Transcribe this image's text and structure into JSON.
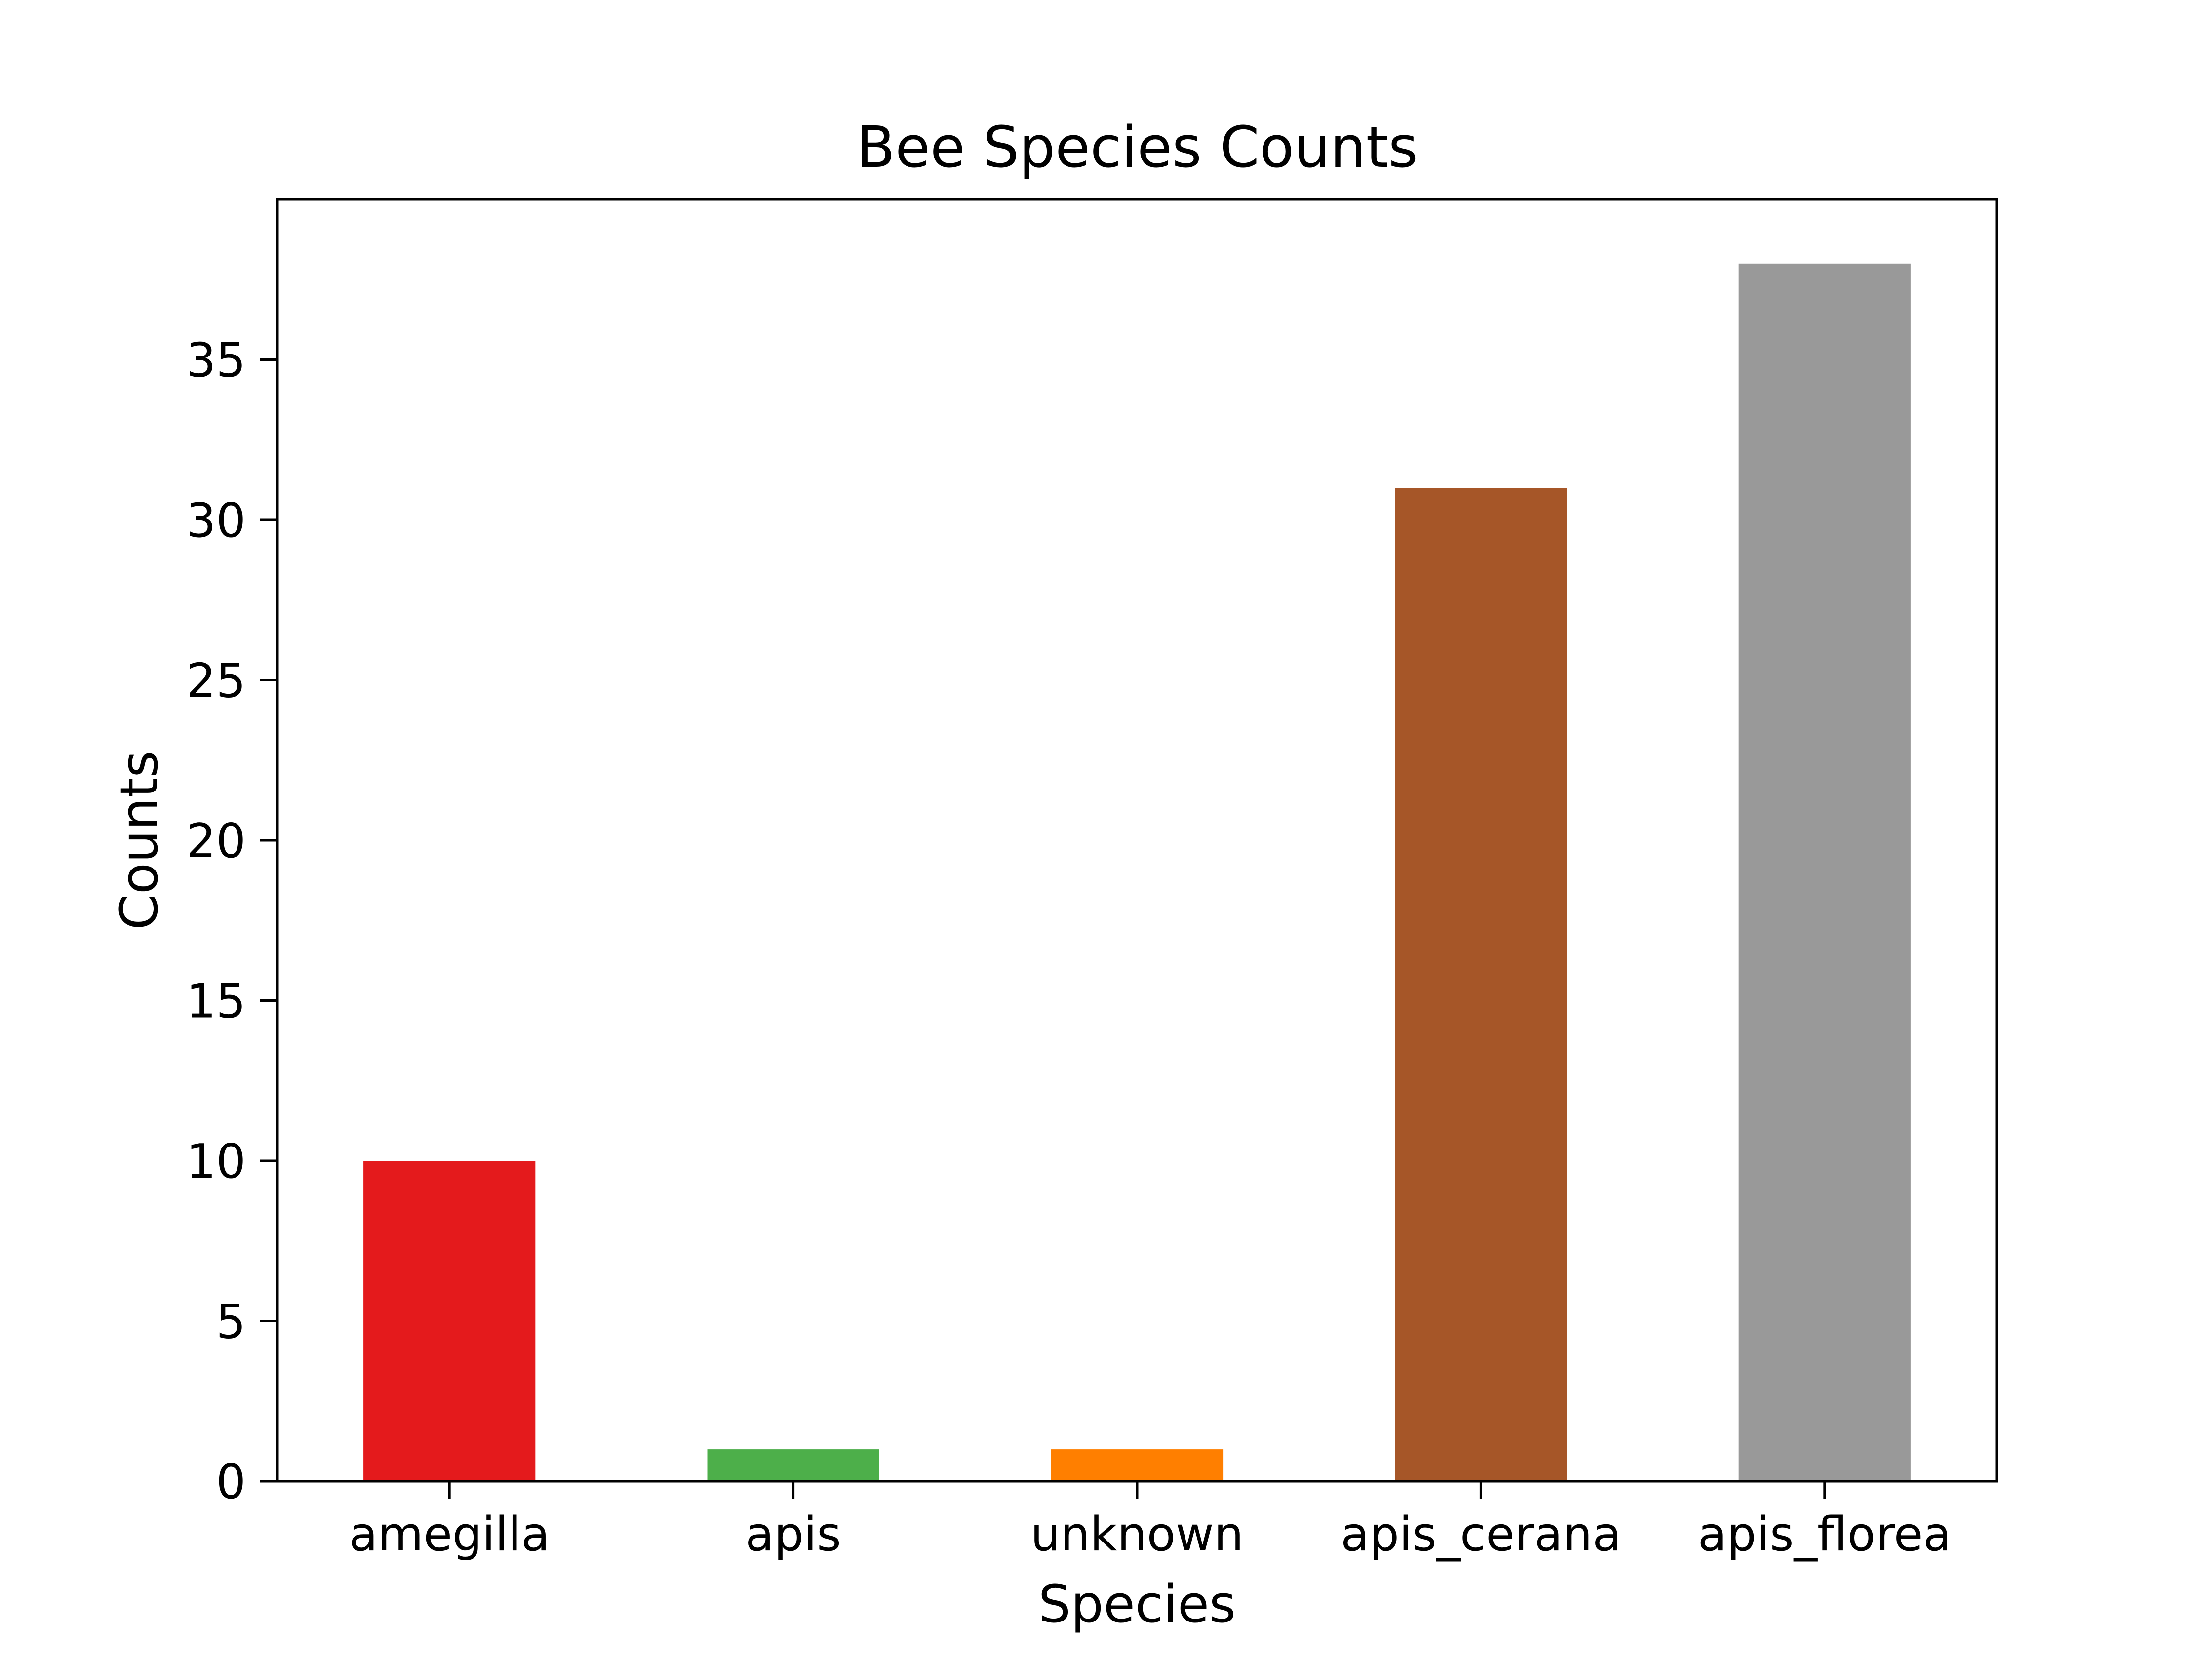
{
  "chart_data": {
    "type": "bar",
    "title": "Bee Species Counts",
    "xlabel": "Species",
    "ylabel": "Counts",
    "categories": [
      "amegilla",
      "apis",
      "unknown",
      "apis_cerana",
      "apis_florea"
    ],
    "values": [
      10,
      1,
      1,
      31,
      38
    ],
    "colors": [
      "#e41a1c",
      "#4daf4a",
      "#ff7f00",
      "#a65628",
      "#999999"
    ],
    "ylim": [
      0,
      40
    ],
    "yticks": [
      0,
      5,
      10,
      15,
      20,
      25,
      30,
      35
    ],
    "grid": false,
    "legend": "none"
  }
}
